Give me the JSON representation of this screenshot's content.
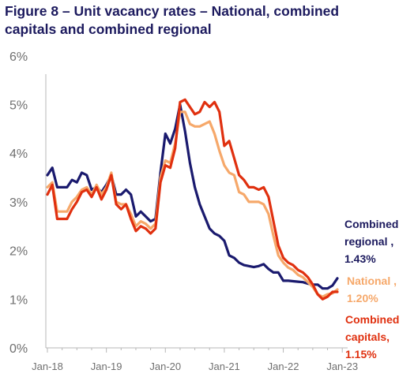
{
  "title": {
    "line1": "Figure 8 – Unit vacancy rates – National, combined",
    "line2": "capitals and combined regional"
  },
  "colors": {
    "title": "#1c1a5e",
    "combined_regional": "#1a1a6e",
    "national": "#f6a86a",
    "combined_capitals": "#e0300f",
    "axis": "#b7b7b7",
    "tick_text": "#6f6f6f"
  },
  "chart_data": {
    "type": "line",
    "x_start": "Jan-18",
    "x_step": "month",
    "ylim": [
      0,
      6
    ],
    "y_ticks": [
      "0%",
      "1%",
      "2%",
      "3%",
      "4%",
      "5%",
      "6%"
    ],
    "x_ticks": [
      "Jan-18",
      "Jan-19",
      "Jan-20",
      "Jan-21",
      "Jan-22",
      "Jan-23"
    ],
    "grid": false,
    "legend": "direct labels at line ends (right)",
    "series": [
      {
        "name": "Combined regional",
        "label_lines": [
          "Combined",
          "regional ,",
          "1.43%"
        ],
        "color_key": "combined_regional",
        "values": [
          3.55,
          3.7,
          3.3,
          3.3,
          3.3,
          3.45,
          3.4,
          3.6,
          3.55,
          3.25,
          3.3,
          3.2,
          3.35,
          3.55,
          3.15,
          3.15,
          3.25,
          3.15,
          2.7,
          2.8,
          2.7,
          2.6,
          2.65,
          3.6,
          4.4,
          4.2,
          4.5,
          5.0,
          4.45,
          3.8,
          3.3,
          2.95,
          2.7,
          2.45,
          2.35,
          2.3,
          2.2,
          1.9,
          1.85,
          1.75,
          1.7,
          1.68,
          1.66,
          1.68,
          1.72,
          1.62,
          1.55,
          1.55,
          1.38,
          1.38,
          1.37,
          1.36,
          1.35,
          1.32,
          1.3,
          1.3,
          1.22,
          1.22,
          1.28,
          1.43
        ]
      },
      {
        "name": "National",
        "label_lines": [
          "National ,",
          "1.20%"
        ],
        "color_key": "national",
        "values": [
          3.3,
          3.4,
          2.8,
          2.8,
          2.8,
          3.0,
          3.1,
          3.25,
          3.3,
          3.15,
          3.35,
          3.15,
          3.3,
          3.6,
          3.0,
          2.95,
          2.95,
          2.75,
          2.5,
          2.6,
          2.55,
          2.45,
          2.55,
          3.5,
          3.85,
          3.8,
          4.2,
          4.85,
          4.85,
          4.6,
          4.55,
          4.55,
          4.6,
          4.65,
          4.4,
          4.05,
          3.75,
          3.6,
          3.55,
          3.2,
          3.15,
          3.0,
          3.0,
          3.0,
          2.95,
          2.75,
          2.3,
          1.9,
          1.75,
          1.65,
          1.6,
          1.5,
          1.45,
          1.35,
          1.25,
          1.1,
          1.05,
          1.1,
          1.12,
          1.2
        ]
      },
      {
        "name": "Combined capitals",
        "label_lines": [
          "Combined",
          "capitals,",
          "1.15%"
        ],
        "color_key": "combined_capitals",
        "values": [
          3.15,
          3.35,
          2.65,
          2.65,
          2.65,
          2.85,
          3.0,
          3.2,
          3.25,
          3.1,
          3.3,
          3.05,
          3.25,
          3.55,
          2.95,
          2.85,
          2.95,
          2.65,
          2.4,
          2.5,
          2.45,
          2.35,
          2.45,
          3.4,
          3.75,
          3.7,
          4.1,
          5.05,
          5.1,
          4.95,
          4.8,
          4.85,
          5.05,
          4.95,
          5.05,
          4.85,
          4.15,
          4.25,
          3.9,
          3.55,
          3.45,
          3.3,
          3.3,
          3.25,
          3.3,
          3.1,
          2.6,
          2.1,
          1.85,
          1.75,
          1.7,
          1.6,
          1.55,
          1.45,
          1.3,
          1.1,
          1.0,
          1.05,
          1.15,
          1.15
        ]
      }
    ]
  }
}
